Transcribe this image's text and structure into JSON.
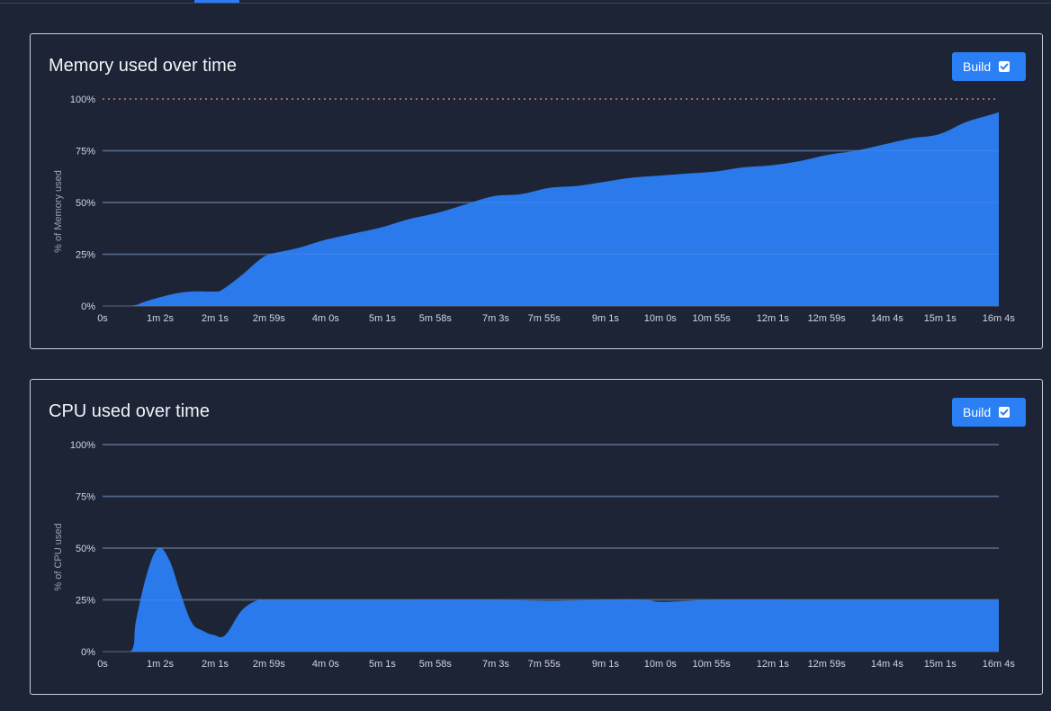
{
  "memory_panel": {
    "title": "Memory used over time",
    "toggle_label": "Build",
    "toggle_checked": true
  },
  "cpu_panel": {
    "title": "CPU used over time",
    "toggle_label": "Build",
    "toggle_checked": true
  },
  "colors": {
    "background": "#1d2436",
    "area_fill": "#2b7ff5",
    "gridline": "#4a5263",
    "limit_line": "#d9776a",
    "panel_border": "#c9ced8"
  },
  "chart_data": [
    {
      "type": "area",
      "title": "Memory used over time",
      "xlabel": "",
      "ylabel": "% of Memory used",
      "ylim": [
        0,
        100
      ],
      "y_ticks": [
        "0%",
        "25%",
        "50%",
        "75%",
        "100%"
      ],
      "x_ticks": [
        "0s",
        "1m 2s",
        "2m 1s",
        "2m 59s",
        "4m 0s",
        "5m 1s",
        "5m 58s",
        "7m 3s",
        "7m 55s",
        "9m 1s",
        "10m 0s",
        "10m 55s",
        "12m 1s",
        "12m 59s",
        "14m 4s",
        "15m 1s",
        "16m 4s"
      ],
      "limit_line": 100,
      "grid": true,
      "series": [
        {
          "x": [
            0,
            0.5,
            0.75,
            1.0,
            1.3,
            1.6,
            2.0,
            2.15,
            2.5,
            2.8,
            3.0,
            3.5,
            4.0,
            4.5,
            5.0,
            5.5,
            6.0,
            6.5,
            7.0,
            7.5,
            8.0,
            8.5,
            9.0,
            9.5,
            10.0,
            10.5,
            11.0,
            11.5,
            12.0,
            12.5,
            13.0,
            13.5,
            14.0,
            14.5,
            15.0,
            15.5,
            16.0,
            16.07
          ],
          "values": [
            0,
            0,
            2,
            4,
            6,
            7,
            7,
            8,
            15,
            22,
            25,
            28,
            32,
            35,
            38,
            42,
            45,
            49,
            53,
            54,
            57,
            58,
            60,
            62,
            63,
            64,
            65,
            67,
            68,
            70,
            73,
            75,
            78,
            81,
            83,
            89,
            93,
            94
          ]
        }
      ]
    },
    {
      "type": "area",
      "title": "CPU used over time",
      "xlabel": "",
      "ylabel": "% of CPU used",
      "ylim": [
        0,
        100
      ],
      "y_ticks": [
        "0%",
        "25%",
        "50%",
        "75%",
        "100%"
      ],
      "x_ticks": [
        "0s",
        "1m 2s",
        "2m 1s",
        "2m 59s",
        "4m 0s",
        "5m 1s",
        "5m 58s",
        "7m 3s",
        "7m 55s",
        "9m 1s",
        "10m 0s",
        "10m 55s",
        "12m 1s",
        "12m 59s",
        "14m 4s",
        "15m 1s",
        "16m 4s"
      ],
      "grid": true,
      "series": [
        {
          "x": [
            0,
            0.5,
            0.6,
            0.8,
            1.0,
            1.2,
            1.4,
            1.6,
            1.8,
            2.0,
            2.2,
            2.5,
            2.8,
            3.0,
            5.0,
            7.0,
            8.0,
            9.0,
            9.7,
            10.0,
            10.5,
            11.0,
            13.0,
            16.07
          ],
          "values": [
            0,
            0,
            15,
            38,
            50,
            44,
            28,
            14,
            10,
            8,
            8,
            20,
            25,
            25,
            25,
            25,
            24.5,
            25,
            25,
            24,
            24.5,
            25,
            25,
            25
          ]
        }
      ]
    }
  ]
}
